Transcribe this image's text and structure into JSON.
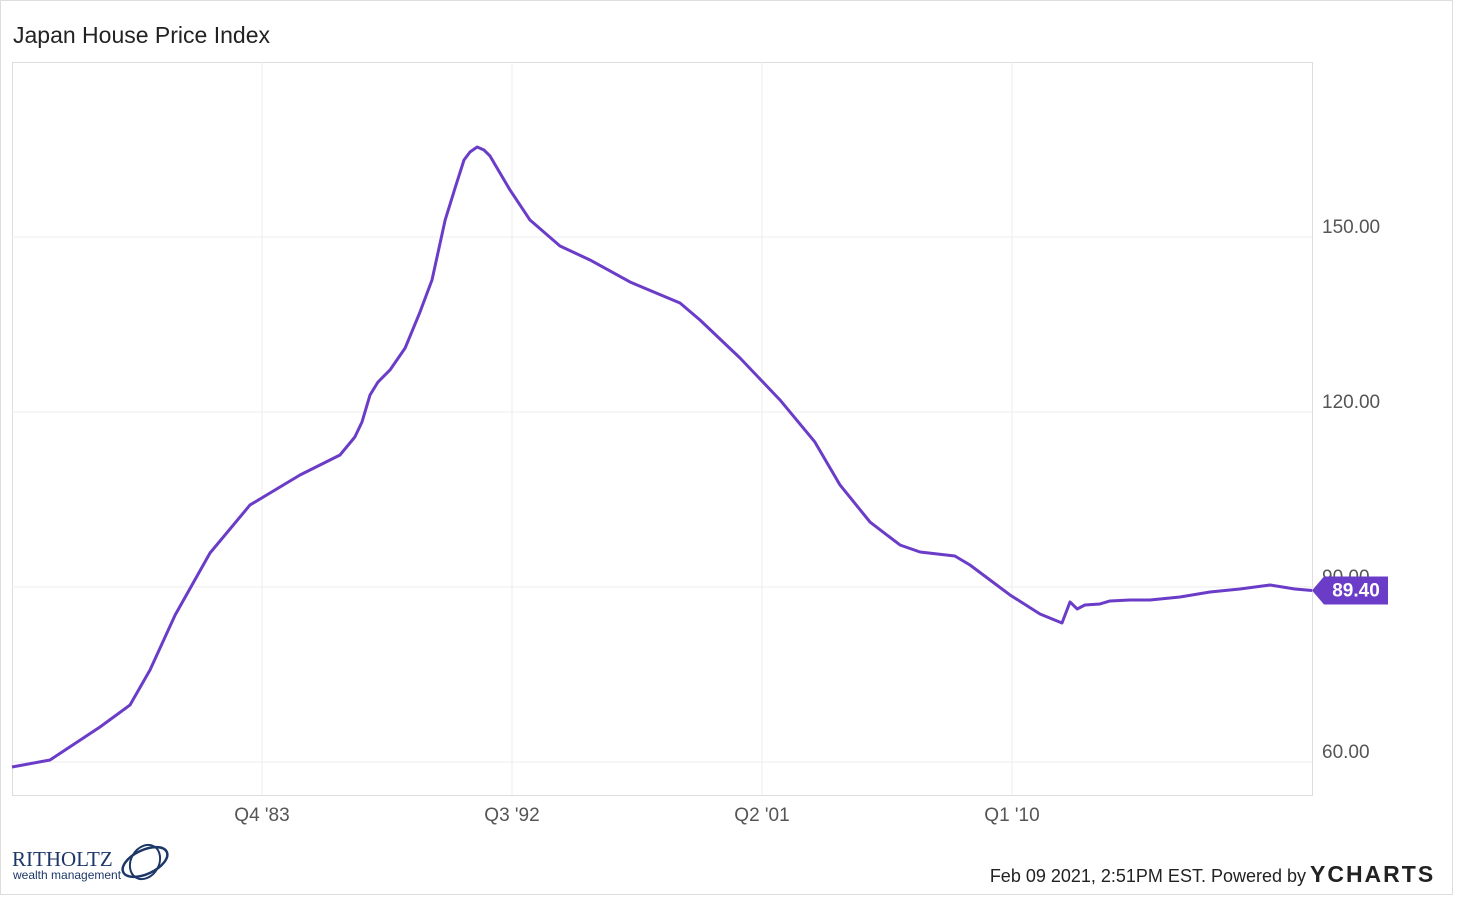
{
  "chart_data": {
    "type": "line",
    "title": "Japan House Price Index",
    "x": [
      1975.0,
      1976.33,
      1978.08,
      1979.13,
      1979.83,
      1980.71,
      1981.93,
      1983.33,
      1985.08,
      1986.48,
      1987.0,
      1987.25,
      1987.53,
      1987.81,
      1988.23,
      1988.76,
      1989.28,
      1989.7,
      1990.16,
      1990.54,
      1990.82,
      1991.03,
      1991.28,
      1991.52,
      1991.73,
      1992.43,
      1993.13,
      1994.18,
      1995.23,
      1996.63,
      1998.38,
      1999.08,
      2000.48,
      2001.88,
      2003.1,
      2003.98,
      2005.03,
      2006.08,
      2006.78,
      2008.0,
      2008.53,
      2009.23,
      2009.93,
      2010.98,
      2011.75,
      2012.03,
      2012.28,
      2012.55,
      2013.08,
      2013.43,
      2014.13,
      2014.83,
      2015.88,
      2016.93,
      2017.98,
      2019.03,
      2019.9,
      2020.5
    ],
    "series": [
      {
        "name": "Japan House Price Index",
        "color": "#6a3cc8",
        "values": [
          59.14,
          60.34,
          66.0,
          69.77,
          75.77,
          85.2,
          95.83,
          104.06,
          109.2,
          112.63,
          115.71,
          118.29,
          122.91,
          125.14,
          127.2,
          130.97,
          137.14,
          142.63,
          152.91,
          158.91,
          163.2,
          164.57,
          165.43,
          164.91,
          163.89,
          158.06,
          152.91,
          148.46,
          146.06,
          142.29,
          138.69,
          135.77,
          129.26,
          122.06,
          114.86,
          107.49,
          101.14,
          97.2,
          96.0,
          95.31,
          93.77,
          91.2,
          88.63,
          85.37,
          83.83,
          87.43,
          86.23,
          86.91,
          87.09,
          87.6,
          87.77,
          87.77,
          88.29,
          89.14,
          89.66,
          90.34,
          89.66,
          89.4
        ],
        "value_labels": [
          null,
          null,
          null,
          null,
          null,
          null,
          null,
          null,
          null,
          null,
          null,
          null,
          null,
          null,
          null,
          null,
          null,
          null,
          null,
          null,
          null,
          null,
          null,
          null,
          null,
          null,
          null,
          null,
          null,
          null,
          null,
          null,
          null,
          null,
          null,
          null,
          null,
          null,
          null,
          null,
          null,
          null,
          null,
          null,
          null,
          null,
          null,
          null,
          null,
          null,
          null,
          null,
          null,
          null,
          null,
          null,
          null,
          "89.40"
        ]
      }
    ],
    "xlim": [
      1975.0,
      2020.5
    ],
    "xticks": [
      {
        "value": 1983.75,
        "label": "Q4 '83"
      },
      {
        "value": 1992.5,
        "label": "Q3 '92"
      },
      {
        "value": 2001.25,
        "label": "Q2 '01"
      },
      {
        "value": 2010.0,
        "label": "Q1 '10"
      }
    ],
    "ylim": [
      54.34,
      180
    ],
    "yticks": [
      {
        "value": 60,
        "label": "60.00"
      },
      {
        "value": 90,
        "label": "90.00"
      },
      {
        "value": 120,
        "label": "120.00"
      },
      {
        "value": 150,
        "label": "150.00"
      }
    ],
    "grid": true,
    "timestamp": "Feb 09 2021, 2:51PM EST. Powered by",
    "brand": "YCHARTS",
    "logo_name": "RITHOLTZ",
    "logo_sub": "wealth management"
  }
}
